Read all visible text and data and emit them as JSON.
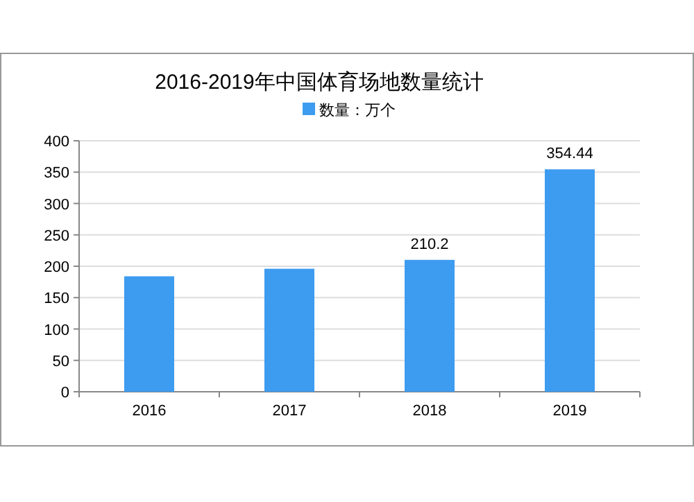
{
  "chart_data": {
    "type": "bar",
    "title": "2016-2019年中国体育场地数量统计",
    "categories": [
      "2016",
      "2017",
      "2018",
      "2019"
    ],
    "series": [
      {
        "name": "数量：万个",
        "color": "#3d9bf0",
        "values": [
          184,
          196,
          210.2,
          354.44
        ],
        "value_labels": [
          null,
          null,
          "210.2",
          "354.44"
        ]
      }
    ],
    "ylim": [
      0,
      400
    ],
    "yticks": [
      0,
      50,
      100,
      150,
      200,
      250,
      300,
      350,
      400
    ],
    "grid": "y",
    "legend": "top"
  }
}
